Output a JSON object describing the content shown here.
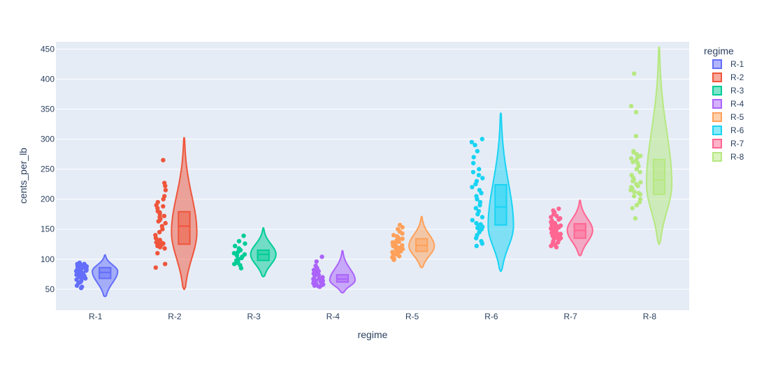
{
  "chart_data": {
    "type": "violin",
    "xlabel": "regime",
    "ylabel": "cents_per_lb",
    "ylim": [
      15,
      462
    ],
    "yticks": [
      50,
      100,
      150,
      200,
      250,
      300,
      350,
      400,
      450
    ],
    "grid": true,
    "legend": {
      "title": "regime",
      "position": "right"
    },
    "series": [
      {
        "name": "R-1",
        "color": "#636efa",
        "q1": 68,
        "median": 78,
        "q3": 86,
        "min": 51,
        "max": 94,
        "kde_min": 38,
        "kde_max": 107,
        "mode": 80,
        "points": [
          52,
          54,
          56,
          60,
          62,
          64,
          66,
          68,
          69,
          70,
          71,
          72,
          73,
          74,
          75,
          76,
          77,
          78,
          78,
          79,
          80,
          80,
          81,
          82,
          82,
          83,
          84,
          84,
          85,
          86,
          86,
          87,
          88,
          88,
          89,
          90,
          90,
          91,
          92,
          92,
          93,
          94
        ]
      },
      {
        "name": "R-2",
        "color": "#ef553b",
        "q1": 125,
        "median": 155,
        "q3": 179,
        "min": 86,
        "max": 265,
        "kde_min": 50,
        "kde_max": 302,
        "mode": 145,
        "points": [
          86,
          92,
          110,
          118,
          120,
          122,
          124,
          125,
          126,
          127,
          128,
          130,
          132,
          135,
          140,
          145,
          150,
          155,
          160,
          163,
          165,
          167,
          170,
          172,
          175,
          178,
          180,
          185,
          188,
          190,
          195,
          200,
          205,
          215,
          222,
          227,
          265
        ]
      },
      {
        "name": "R-3",
        "color": "#00cc96",
        "q1": 98,
        "median": 108,
        "q3": 115,
        "min": 85,
        "max": 139,
        "kde_min": 71,
        "kde_max": 152,
        "mode": 108,
        "points": [
          85,
          90,
          92,
          94,
          96,
          98,
          100,
          102,
          104,
          106,
          108,
          110,
          112,
          115,
          118,
          122,
          126,
          130,
          139
        ]
      },
      {
        "name": "R-4",
        "color": "#ab63fa",
        "q1": 62,
        "median": 67,
        "q3": 74,
        "min": 54,
        "max": 104,
        "kde_min": 44,
        "kde_max": 114,
        "mode": 65,
        "points": [
          54,
          55,
          56,
          57,
          58,
          59,
          60,
          61,
          62,
          62,
          63,
          64,
          64,
          65,
          65,
          66,
          66,
          67,
          68,
          69,
          70,
          72,
          74,
          76,
          78,
          80,
          82,
          85,
          89,
          96,
          104
        ]
      },
      {
        "name": "R-5",
        "color": "#ffa15a",
        "q1": 113,
        "median": 123,
        "q3": 134,
        "min": 99,
        "max": 157,
        "kde_min": 86,
        "kde_max": 171,
        "mode": 122,
        "points": [
          99,
          101,
          103,
          105,
          107,
          108,
          109,
          110,
          111,
          112,
          113,
          114,
          115,
          116,
          117,
          118,
          119,
          120,
          121,
          122,
          123,
          124,
          125,
          126,
          127,
          128,
          129,
          130,
          131,
          132,
          134,
          136,
          138,
          140,
          143,
          146,
          150,
          153,
          157
        ]
      },
      {
        "name": "R-6",
        "color": "#19d3f3",
        "q1": 157,
        "median": 187,
        "q3": 224,
        "min": 122,
        "max": 300,
        "kde_min": 80,
        "kde_max": 343,
        "mode": 155,
        "points": [
          122,
          126,
          130,
          135,
          140,
          145,
          148,
          150,
          152,
          154,
          156,
          158,
          160,
          165,
          170,
          175,
          180,
          185,
          190,
          195,
          200,
          205,
          210,
          215,
          220,
          225,
          230,
          235,
          240,
          245,
          250,
          260,
          270,
          280,
          290,
          295,
          300
        ]
      },
      {
        "name": "R-7",
        "color": "#ff6692",
        "q1": 135,
        "median": 148,
        "q3": 159,
        "min": 120,
        "max": 184,
        "kde_min": 106,
        "kde_max": 198,
        "mode": 148,
        "points": [
          120,
          122,
          124,
          126,
          128,
          130,
          132,
          134,
          135,
          136,
          137,
          138,
          139,
          140,
          141,
          142,
          143,
          144,
          145,
          146,
          147,
          148,
          149,
          150,
          151,
          152,
          153,
          154,
          155,
          156,
          157,
          158,
          159,
          160,
          162,
          164,
          166,
          168,
          170,
          172,
          175,
          178,
          181,
          184
        ]
      },
      {
        "name": "R-8",
        "color": "#b6e880",
        "q1": 208,
        "median": 232,
        "q3": 266,
        "min": 168,
        "max": 409,
        "kde_min": 125,
        "kde_max": 453,
        "mode": 225,
        "points": [
          168,
          185,
          190,
          195,
          200,
          205,
          208,
          210,
          212,
          215,
          218,
          220,
          222,
          225,
          228,
          230,
          232,
          235,
          240,
          245,
          250,
          255,
          260,
          262,
          265,
          268,
          270,
          272,
          275,
          278,
          280,
          305,
          345,
          355,
          409
        ]
      }
    ]
  }
}
